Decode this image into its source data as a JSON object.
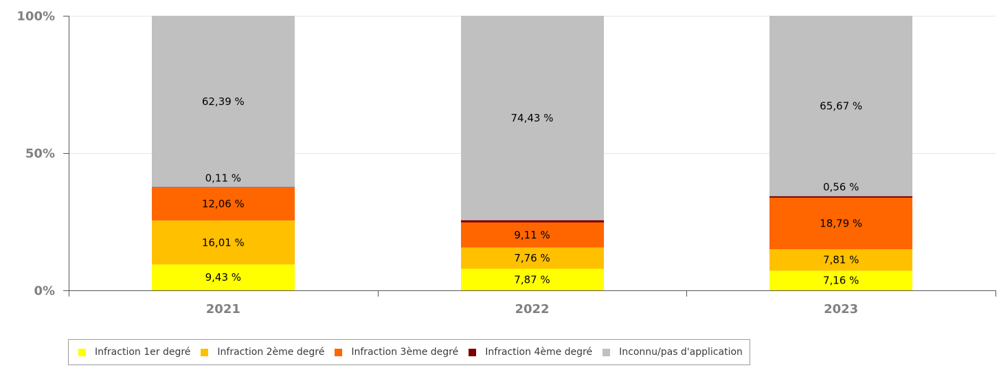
{
  "chart_data": {
    "type": "bar",
    "stacked": true,
    "percent_stacked": true,
    "categories": [
      "2021",
      "2022",
      "2023"
    ],
    "series": [
      {
        "name": "Infraction 1er degré",
        "color": "#ffff00",
        "values": [
          9.43,
          7.87,
          7.16
        ],
        "labels": [
          "9,43 %",
          "7,87 %",
          "7,16 %"
        ]
      },
      {
        "name": "Infraction 2ème degré",
        "color": "#ffc000",
        "values": [
          16.01,
          7.76,
          7.81
        ],
        "labels": [
          "16,01 %",
          "7,76 %",
          "7,81 %"
        ]
      },
      {
        "name": "Infraction 3ème degré",
        "color": "#ff6600",
        "values": [
          12.06,
          9.11,
          18.79
        ],
        "labels": [
          "12,06 %",
          "9,11 %",
          "18,79 %"
        ]
      },
      {
        "name": "Infraction 4ème degré",
        "color": "#7f0000",
        "values": [
          0.11,
          0.83,
          0.56
        ],
        "labels": [
          "0,11 %",
          "",
          "0,56 %"
        ]
      },
      {
        "name": "Inconnu/pas d'application",
        "color": "#c0c0c0",
        "values": [
          62.39,
          74.43,
          65.67
        ],
        "labels": [
          "62,39 %",
          "74,43 %",
          "65,67 %"
        ]
      }
    ],
    "yticks": [
      "0%",
      "50%",
      "100%"
    ],
    "ylim": [
      0,
      100
    ],
    "grid": true,
    "legend_position": "bottom"
  }
}
